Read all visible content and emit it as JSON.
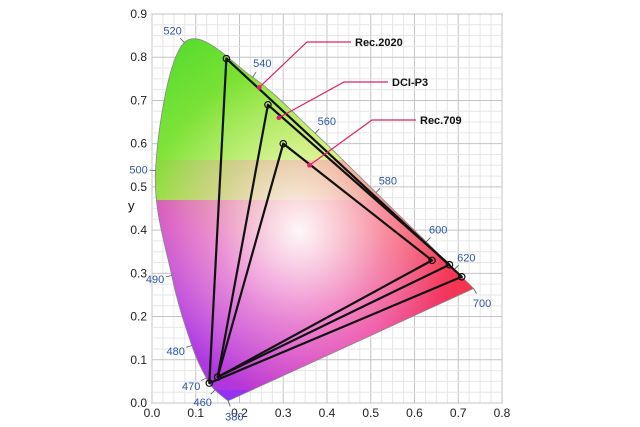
{
  "chart_data": {
    "type": "scatter",
    "title": "",
    "xlabel": "",
    "ylabel": "y",
    "xlim": [
      0.0,
      0.8
    ],
    "ylim": [
      0.0,
      0.9
    ],
    "x_ticks": [
      "0.0",
      "0.1",
      "0.2",
      "0.3",
      "0.4",
      "0.5",
      "0.6",
      "0.7",
      "0.8"
    ],
    "y_ticks": [
      "0.0",
      "0.1",
      "0.2",
      "0.3",
      "0.4",
      "0.5",
      "0.6",
      "0.7",
      "0.8",
      "0.9"
    ],
    "grid": true,
    "spectral_locus": [
      {
        "nm": "380",
        "x": 0.174,
        "y": 0.005
      },
      {
        "nm": "460",
        "x": 0.144,
        "y": 0.03
      },
      {
        "nm": "470",
        "x": 0.124,
        "y": 0.058
      },
      {
        "nm": "480",
        "x": 0.091,
        "y": 0.133
      },
      {
        "nm": "490",
        "x": 0.045,
        "y": 0.295
      },
      {
        "nm": "500",
        "x": 0.008,
        "y": 0.538
      },
      {
        "nm": "520",
        "x": 0.074,
        "y": 0.834
      },
      {
        "nm": "540",
        "x": 0.23,
        "y": 0.754
      },
      {
        "nm": "560",
        "x": 0.373,
        "y": 0.624
      },
      {
        "nm": "580",
        "x": 0.512,
        "y": 0.487
      },
      {
        "nm": "600",
        "x": 0.627,
        "y": 0.373
      },
      {
        "nm": "620",
        "x": 0.691,
        "y": 0.309
      },
      {
        "nm": "700",
        "x": 0.735,
        "y": 0.265
      }
    ],
    "series": [
      {
        "name": "Rec.2020",
        "points": [
          [
            0.708,
            0.292
          ],
          [
            0.17,
            0.797
          ],
          [
            0.131,
            0.046
          ]
        ]
      },
      {
        "name": "DCI-P3",
        "points": [
          [
            0.68,
            0.32
          ],
          [
            0.265,
            0.69
          ],
          [
            0.15,
            0.06
          ]
        ]
      },
      {
        "name": "Rec.709",
        "points": [
          [
            0.64,
            0.33
          ],
          [
            0.3,
            0.6
          ],
          [
            0.15,
            0.06
          ]
        ]
      }
    ],
    "annotations": [
      {
        "text": "Rec.2020",
        "target": [
          0.245,
          0.73
        ]
      },
      {
        "text": "DCI-P3",
        "target": [
          0.29,
          0.66
        ]
      },
      {
        "text": "Rec.709",
        "target": [
          0.36,
          0.55
        ]
      }
    ]
  }
}
